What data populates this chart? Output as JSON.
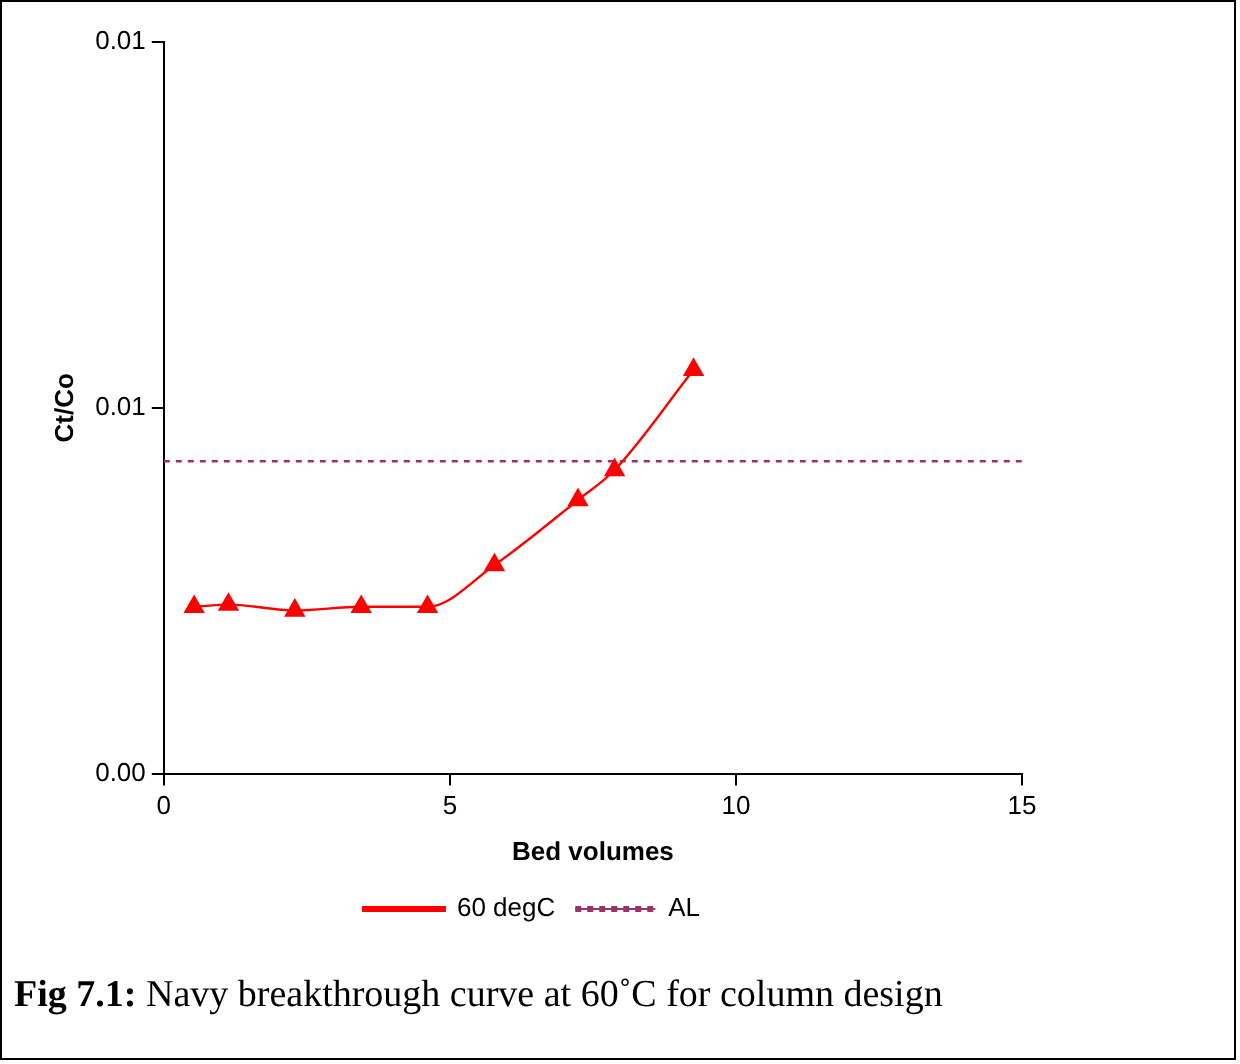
{
  "chart_data": {
    "type": "line",
    "xlabel": "Bed volumes",
    "ylabel": "Ct/Co",
    "x": [
      0.53,
      1.13,
      2.29,
      3.45,
      4.61,
      5.78,
      7.24,
      7.88,
      9.26
    ],
    "series": [
      {
        "name": "60 degC",
        "color": "#ff0000",
        "marker": "triangle",
        "line_style": "solid",
        "values": [
          0.00228,
          0.00231,
          0.00223,
          0.00228,
          0.00228,
          0.00285,
          0.00374,
          0.00415,
          0.00552
        ]
      },
      {
        "name": "AL",
        "color": "#993366",
        "marker": "none",
        "line_style": "dotted",
        "x": [
          0,
          15
        ],
        "values": [
          0.00427,
          0.00427
        ]
      }
    ],
    "xlim": [
      0,
      15
    ],
    "xticks": [
      0,
      5,
      10,
      15
    ],
    "ylim": [
      0,
      0.01
    ],
    "yticks": [
      {
        "value": 0,
        "label": "0.00"
      },
      {
        "value": 0.005,
        "label": "0.01"
      },
      {
        "value": 0.01,
        "label": "0.01"
      }
    ],
    "grid": false,
    "legend": "bottom",
    "annotations": [
      "Fig 7.1: Navy breakthrough curve at 60˚C for column design"
    ]
  }
}
